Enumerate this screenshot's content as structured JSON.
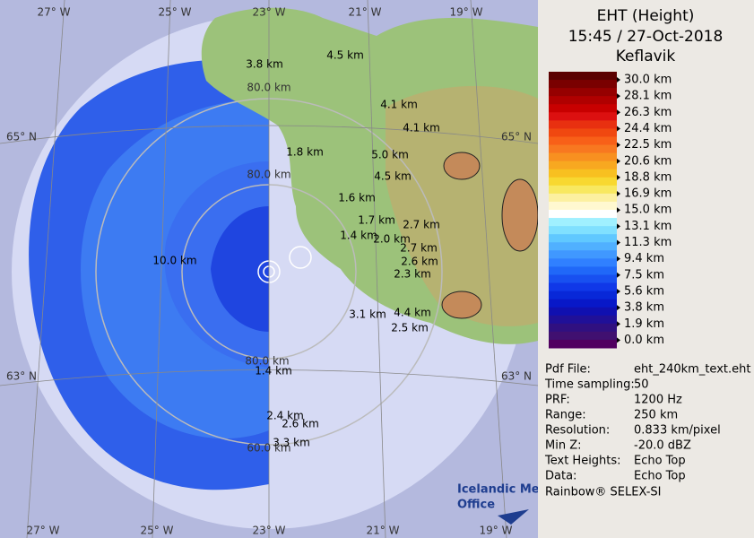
{
  "header": {
    "title": "EHT (Height)",
    "time": "15:45 / 27-Oct-2018",
    "site": "Keflavik"
  },
  "scale_labels": [
    "30.0 km",
    "28.1 km",
    "26.3 km",
    "24.4 km",
    "22.5 km",
    "20.6 km",
    "18.8 km",
    "16.9 km",
    "15.0 km",
    "13.1 km",
    "11.3 km",
    "9.4 km",
    "7.5 km",
    "5.6 km",
    "3.8 km",
    "1.9 km",
    "0.0 km"
  ],
  "info": [
    {
      "label": "Pdf File:",
      "value": "eht_240km_text.eht"
    },
    {
      "label": "Time sampling:",
      "value": "50"
    },
    {
      "label": "PRF:",
      "value": "1200 Hz"
    },
    {
      "label": "Range:",
      "value": "250 km"
    },
    {
      "label": "Resolution:",
      "value": "0.833 km/pixel"
    },
    {
      "label": "Min Z:",
      "value": "-20.0 dBZ"
    },
    {
      "label": "Text Heights:",
      "value": "Echo Top"
    },
    {
      "label": "Data:",
      "value": "Echo Top"
    }
  ],
  "footer": "Rainbow® SELEX-SI",
  "logo": [
    "Icelandic Met",
    "Office"
  ],
  "longitude_labels": {
    "top": [
      "27° W",
      "25° W",
      "23° W",
      "21° W",
      "19° W"
    ],
    "bottom": [
      "27° W",
      "25° W",
      "23° W",
      "21° W",
      "19° W"
    ]
  },
  "latitude_labels": {
    "left": [
      "65° N",
      "63° N"
    ],
    "right": [
      "65° N",
      "63° N"
    ]
  },
  "range_labels": [
    "80.0 km",
    "80.0 km",
    "80.0 km",
    "60.0 km"
  ],
  "map_labels": [
    "3.8 km",
    "4.5 km",
    "4.1 km",
    "4.1 km",
    "1.8 km",
    "5.0 km",
    "4.5 km",
    "1.6 km",
    "1.7 km",
    "2.7 km",
    "1.4 km",
    "2.0 km",
    "2.7 km",
    "2.6 km",
    "2.3 km",
    "10.0 km",
    "3.1 km",
    "4.4 km",
    "2.5 km",
    "1.4 km",
    "2.4 km",
    "2.6 km",
    "3.3 km"
  ]
}
